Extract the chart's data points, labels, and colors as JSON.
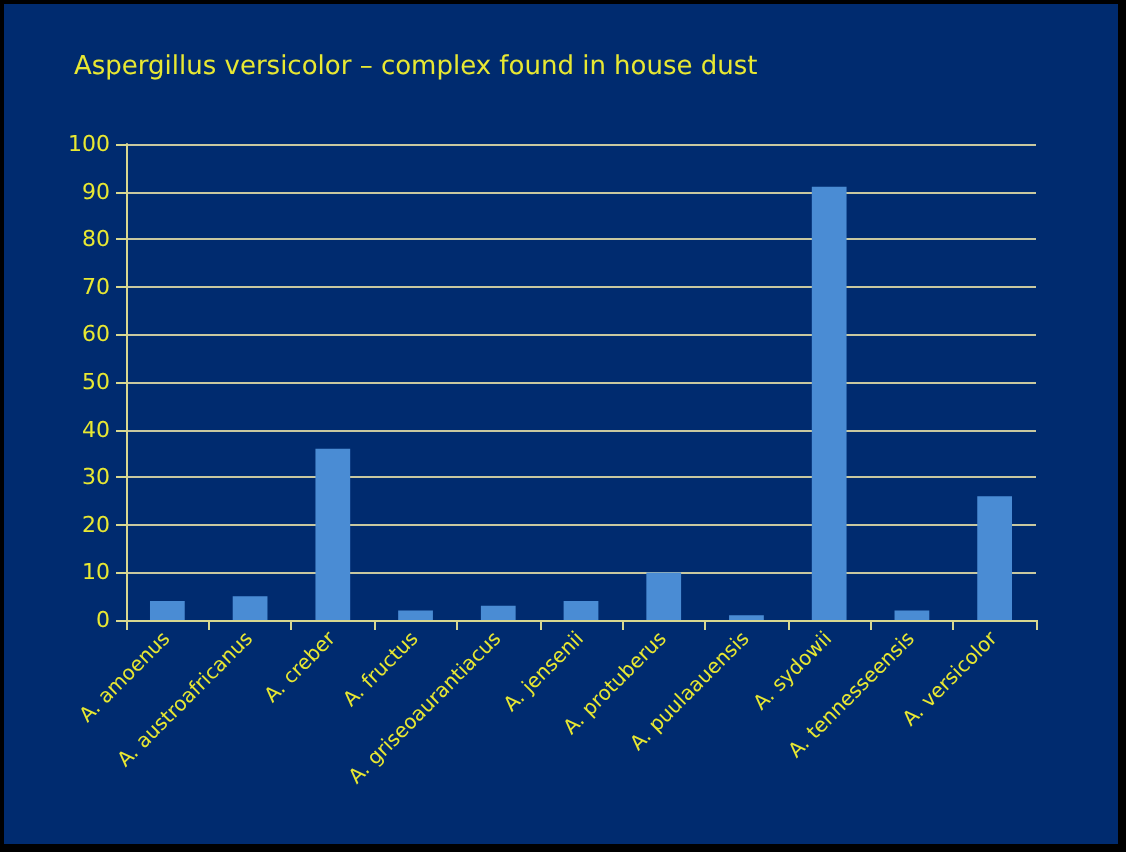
{
  "chart_data": {
    "type": "bar",
    "title": "Aspergillus versicolor – complex found in house dust",
    "categories": [
      "A. amoenus",
      "A. austroafricanus",
      "A. creber",
      "A. fructus",
      "A. griseoaurantiacus",
      "A. jensenii",
      "A. protuberus",
      "A. puulaauensis",
      "A. sydowii",
      "A. tennesseensis",
      "A. versicolor"
    ],
    "values": [
      4,
      5,
      36,
      2,
      3,
      4,
      10,
      1,
      91,
      2,
      26
    ],
    "color": "#4a8cd4",
    "ylim": [
      0,
      100
    ],
    "yticks": [
      0,
      10,
      20,
      30,
      40,
      50,
      60,
      70,
      80,
      90,
      100
    ],
    "grid": "y"
  }
}
